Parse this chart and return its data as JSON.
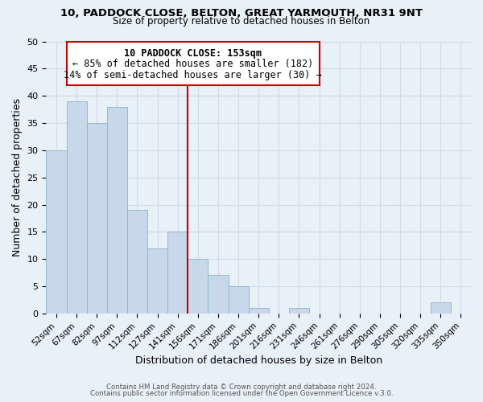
{
  "title": "10, PADDOCK CLOSE, BELTON, GREAT YARMOUTH, NR31 9NT",
  "subtitle": "Size of property relative to detached houses in Belton",
  "xlabel": "Distribution of detached houses by size in Belton",
  "ylabel": "Number of detached properties",
  "bin_labels": [
    "52sqm",
    "67sqm",
    "82sqm",
    "97sqm",
    "112sqm",
    "127sqm",
    "141sqm",
    "156sqm",
    "171sqm",
    "186sqm",
    "201sqm",
    "216sqm",
    "231sqm",
    "246sqm",
    "261sqm",
    "276sqm",
    "290sqm",
    "305sqm",
    "320sqm",
    "335sqm",
    "350sqm"
  ],
  "bar_heights": [
    30,
    39,
    35,
    38,
    19,
    12,
    15,
    10,
    7,
    5,
    1,
    0,
    1,
    0,
    0,
    0,
    0,
    0,
    0,
    2,
    0
  ],
  "bar_color": "#c8d8ea",
  "bar_edgecolor": "#8ab4cc",
  "marker_label": "10 PADDOCK CLOSE: 153sqm",
  "annotation_line1": "← 85% of detached houses are smaller (182)",
  "annotation_line2": "14% of semi-detached houses are larger (30) →",
  "marker_color": "#cc0000",
  "ylim": [
    0,
    50
  ],
  "yticks": [
    0,
    5,
    10,
    15,
    20,
    25,
    30,
    35,
    40,
    45,
    50
  ],
  "footer1": "Contains HM Land Registry data © Crown copyright and database right 2024.",
  "footer2": "Contains public sector information licensed under the Open Government Licence v.3.0.",
  "background_color": "#e8f0f8",
  "plot_background_color": "#e8f0f8",
  "grid_color": "#d0dce8",
  "title_fontsize": 9.5,
  "subtitle_fontsize": 8.5
}
